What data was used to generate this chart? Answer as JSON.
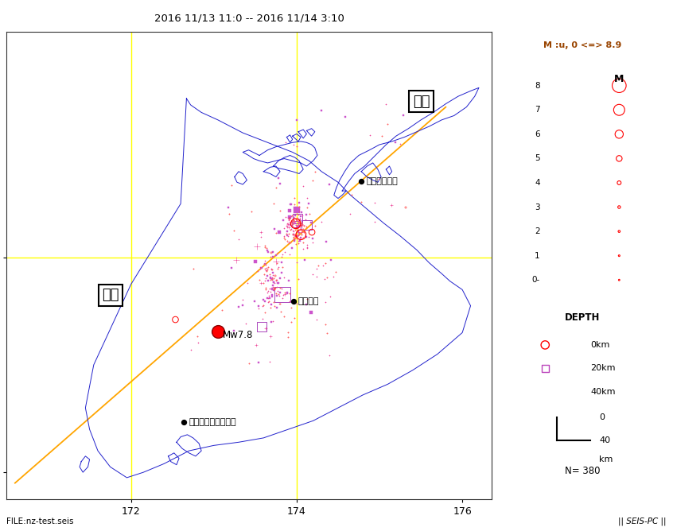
{
  "title": "2016 11/13 11:0 -- 2016 11/14 3:10",
  "xlim": [
    170.5,
    176.5
  ],
  "ylim": [
    -44.3,
    -39.85
  ],
  "map_xlim": [
    170.5,
    176.3
  ],
  "map_ylim": [
    -44.2,
    -39.9
  ],
  "xlabel_ticks": [
    172,
    174,
    176
  ],
  "ylabel_ticks": [
    -44,
    -42
  ],
  "background_color": "#ffffff",
  "grid_color": "yellow",
  "grid_lw": 1.0,
  "coastline_color": "#2222cc",
  "coastline_lw": 0.7,
  "fault_color": "orange",
  "fault_lw": 1.3,
  "legend_title": "M :u, 0 <=> 8.9",
  "cities": [
    {
      "name": "ウエリントン",
      "lon": 174.78,
      "lat": -41.29,
      "ha": "left",
      "ox": 0.06,
      "oy": 0.0
    },
    {
      "name": "カイクラ",
      "lon": 173.96,
      "lat": -42.41,
      "ha": "left",
      "ox": 0.06,
      "oy": 0.0
    },
    {
      "name": "クライストチャーチ",
      "lon": 172.64,
      "lat": -43.53,
      "ha": "left",
      "ox": 0.06,
      "oy": 0.0
    }
  ],
  "label_minami": "南島",
  "label_minami_lon": 171.65,
  "label_minami_lat": -42.35,
  "label_kita": "北島",
  "label_kita_lon": 175.4,
  "label_kita_lat": -40.55,
  "mainshock_lon": 173.05,
  "mainshock_lat": -42.69,
  "mainshock_label": "Mw7.8",
  "mainshock_size": 130,
  "file_label": "FILE:nz-test.seis",
  "software_label": "|| SEIS-PC ||",
  "n_label": "N= 380"
}
